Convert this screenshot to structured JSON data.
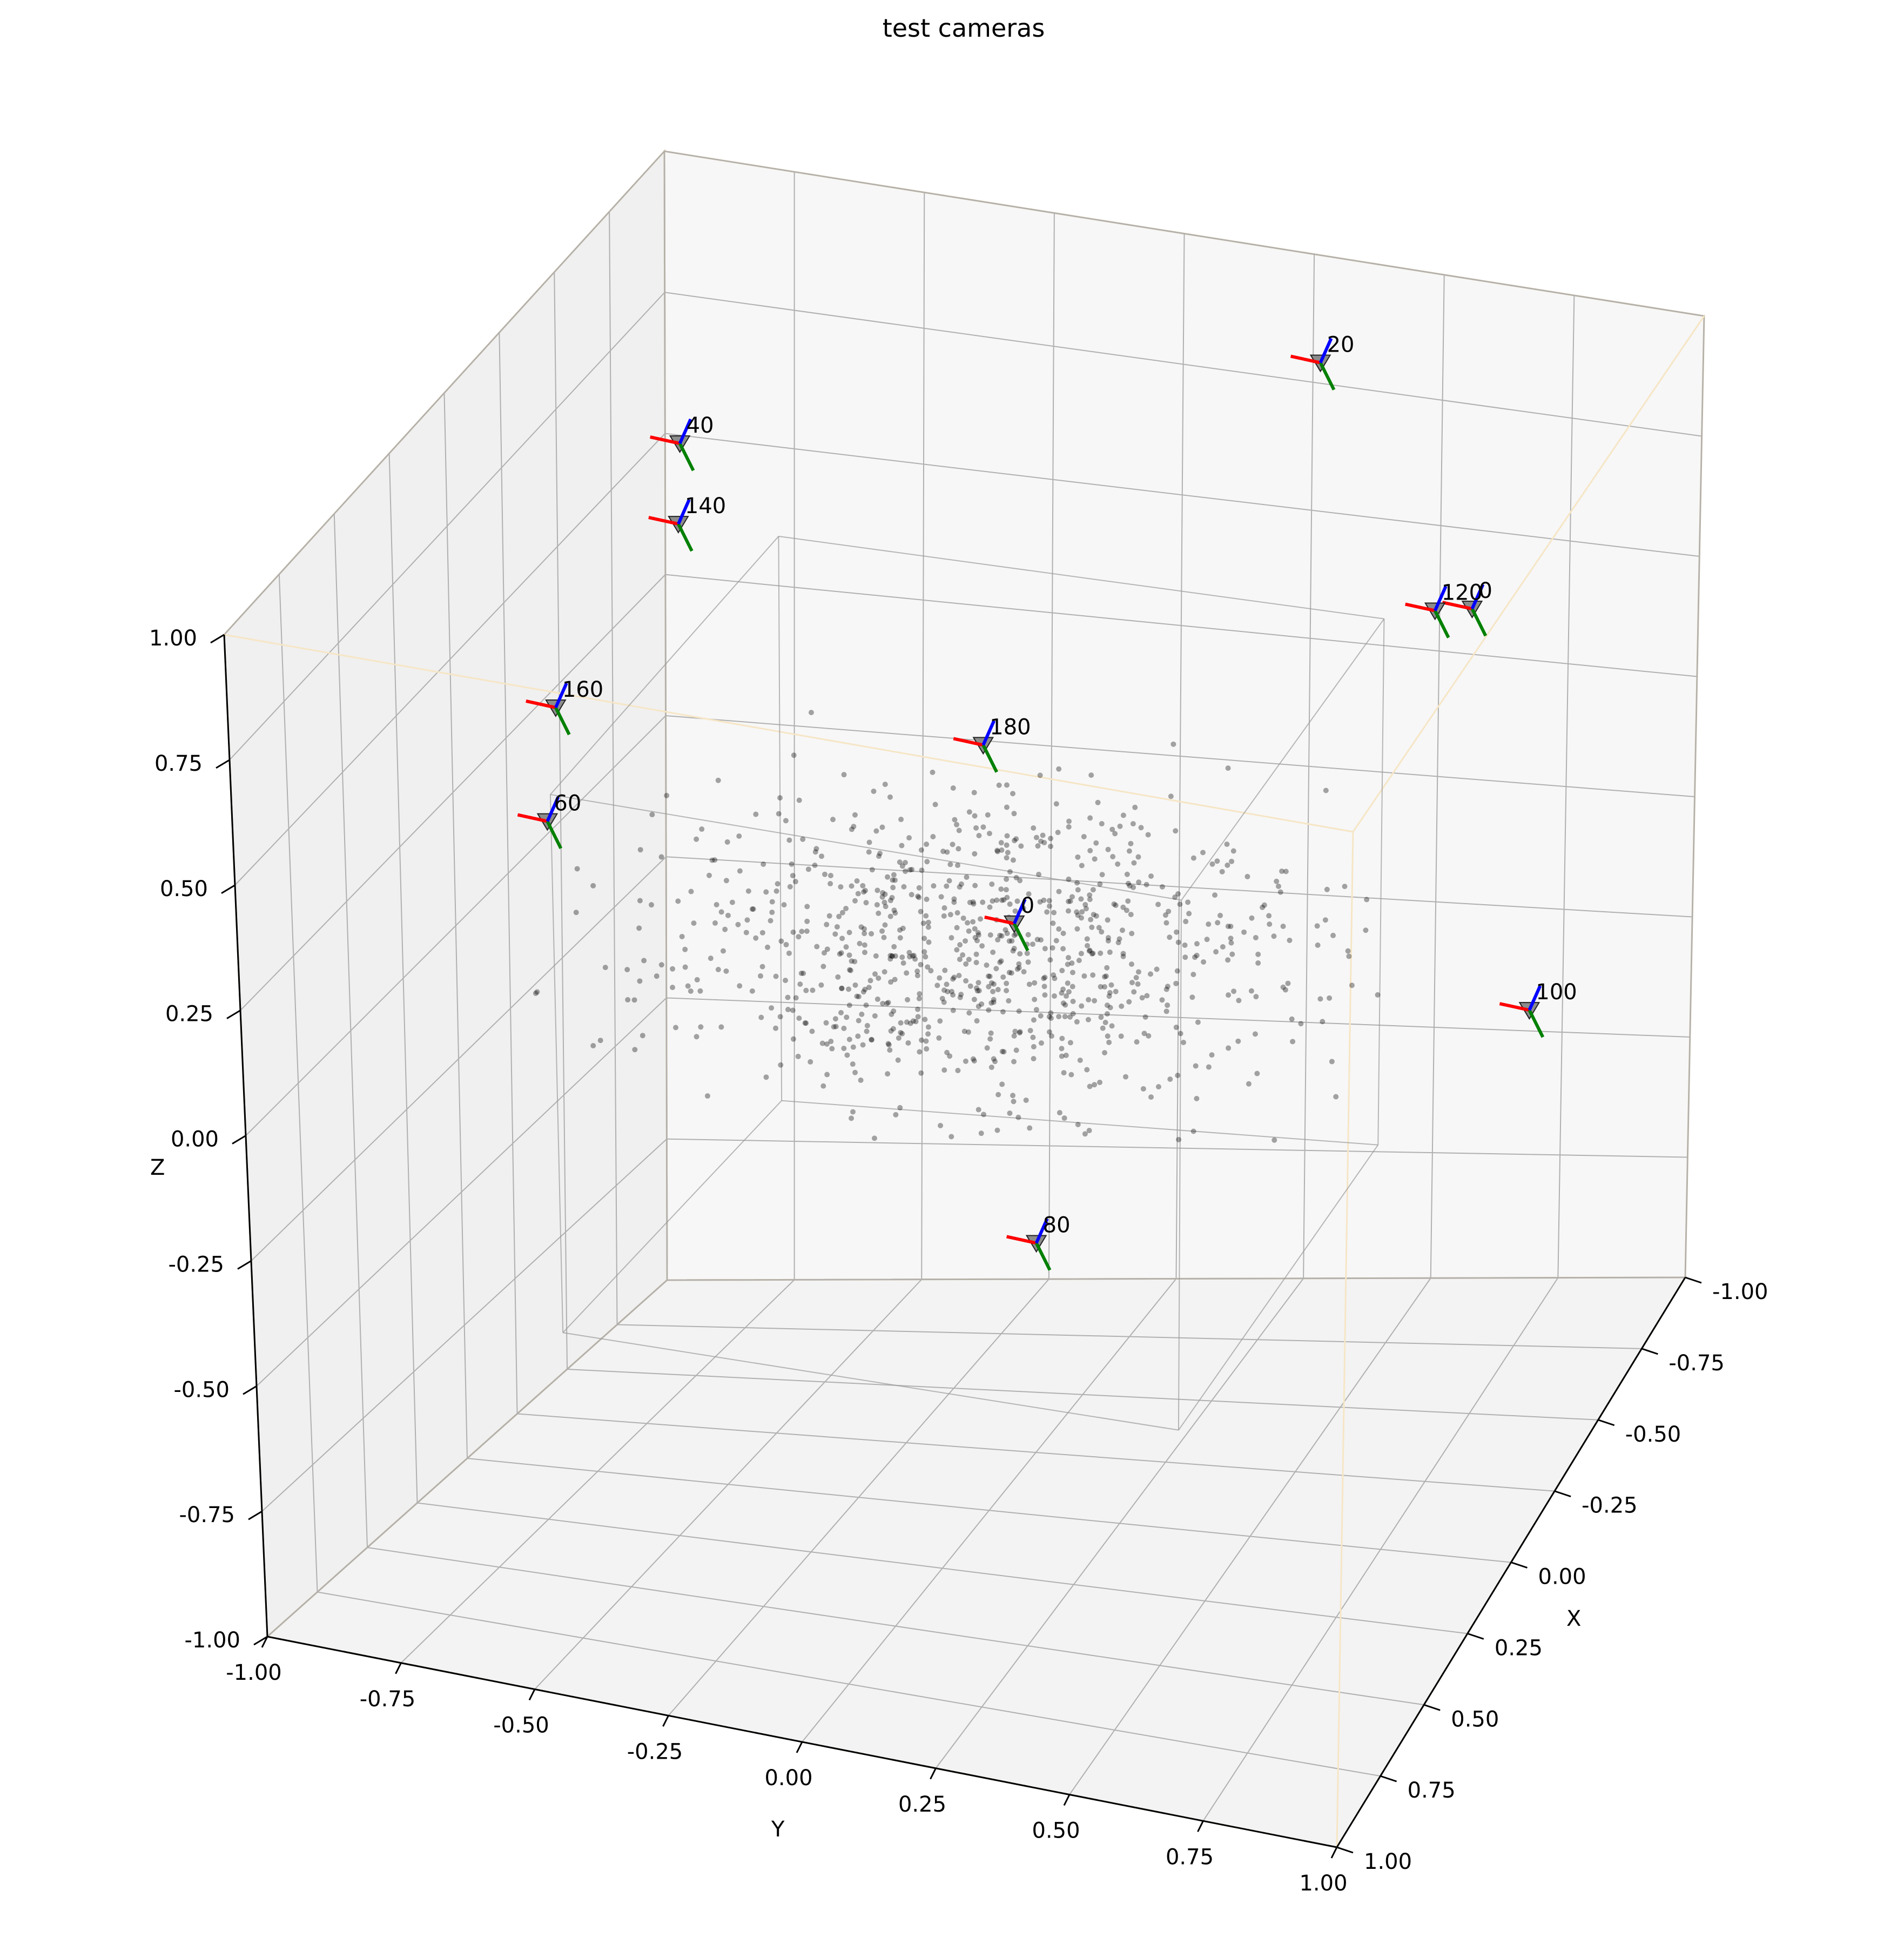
{
  "chart_data": {
    "type": "scatter3d",
    "title": "test cameras",
    "xlabel": "X",
    "ylabel": "Y",
    "zlabel": "Z",
    "xlim": [
      -1.0,
      1.0
    ],
    "ylim": [
      -1.0,
      1.0
    ],
    "zlim": [
      -1.0,
      1.0
    ],
    "grid": true,
    "x_ticks": [
      "-1.00",
      "-0.75",
      "-0.50",
      "-0.25",
      "0.00",
      "0.25",
      "0.50",
      "0.75",
      "1.00"
    ],
    "y_ticks": [
      "-1.00",
      "-0.75",
      "-0.50",
      "-0.25",
      "0.00",
      "0.25",
      "0.50",
      "0.75",
      "1.00"
    ],
    "z_ticks": [
      "-1.00",
      "-0.75",
      "-0.50",
      "-0.25",
      "0.00",
      "0.25",
      "0.50",
      "0.75",
      "1.00"
    ],
    "cameras": [
      {
        "label": "0",
        "x": -0.54,
        "y": 0.72,
        "z": 0.6
      },
      {
        "label": "20",
        "x": -0.62,
        "y": 0.4,
        "z": 1.0
      },
      {
        "label": "40",
        "x": 0.04,
        "y": -0.55,
        "z": 1.0
      },
      {
        "label": "60",
        "x": 0.67,
        "y": -0.56,
        "z": 0.56
      },
      {
        "label": "80",
        "x": 0.45,
        "y": 0.25,
        "z": -0.23
      },
      {
        "label": "100",
        "x": -0.05,
        "y": 1.0,
        "z": 0.09
      },
      {
        "label": "120",
        "x": -0.48,
        "y": 0.67,
        "z": 0.62
      },
      {
        "label": "140",
        "x": 0.18,
        "y": -0.5,
        "z": 0.92
      },
      {
        "label": "160",
        "x": 0.49,
        "y": -0.61,
        "z": 0.69
      },
      {
        "label": "180",
        "x": 0.02,
        "y": 0.0,
        "z": 0.5
      },
      {
        "label": "0",
        "x": 0.0,
        "y": 0.05,
        "z": 0.15
      }
    ],
    "point_cloud": "sparse gray points concentrated near the origin",
    "colors": {
      "axis_x": "#ff0000",
      "axis_y": "#008000",
      "axis_z": "#0000ff",
      "points": "#000000"
    }
  }
}
